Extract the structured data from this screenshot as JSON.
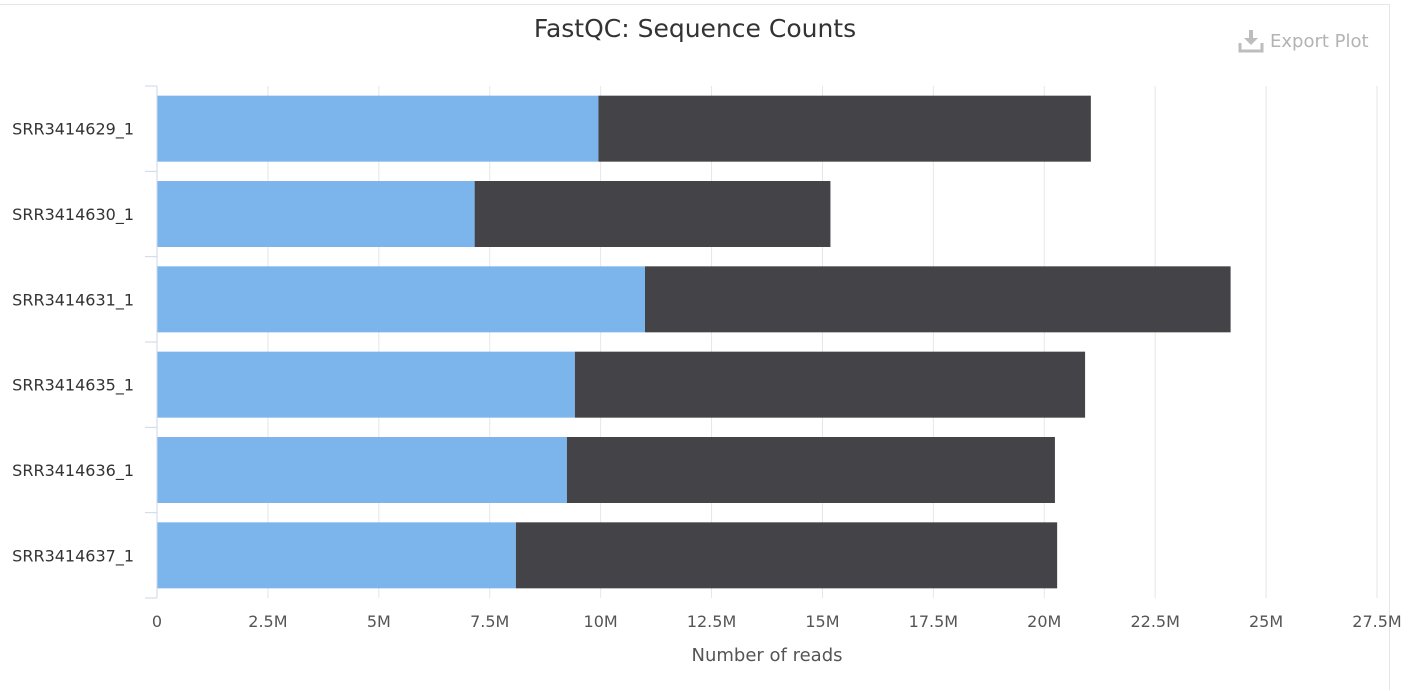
{
  "export_button": {
    "label": "Export Plot",
    "icon": "download-icon"
  },
  "chart_data": {
    "type": "bar",
    "orientation": "horizontal",
    "stacked": true,
    "title": "FastQC: Sequence Counts",
    "xlabel": "Number of reads",
    "ylabel": "",
    "xlim": [
      0,
      27500000
    ],
    "x_ticks": [
      "0",
      "2.5M",
      "5M",
      "7.5M",
      "10M",
      "12.5M",
      "15M",
      "17.5M",
      "20M",
      "22.5M",
      "25M",
      "27.5M"
    ],
    "grid": true,
    "legend": false,
    "categories": [
      "SRR3414629_1",
      "SRR3414630_1",
      "SRR3414631_1",
      "SRR3414635_1",
      "SRR3414636_1",
      "SRR3414637_1"
    ],
    "series": [
      {
        "color": "#7cb5ec",
        "values": [
          9950000,
          7160000,
          11000000,
          9420000,
          9240000,
          8090000
        ]
      },
      {
        "color": "#434348",
        "values": [
          11100000,
          8020000,
          13200000,
          11500000,
          11000000,
          12200000
        ]
      }
    ]
  }
}
